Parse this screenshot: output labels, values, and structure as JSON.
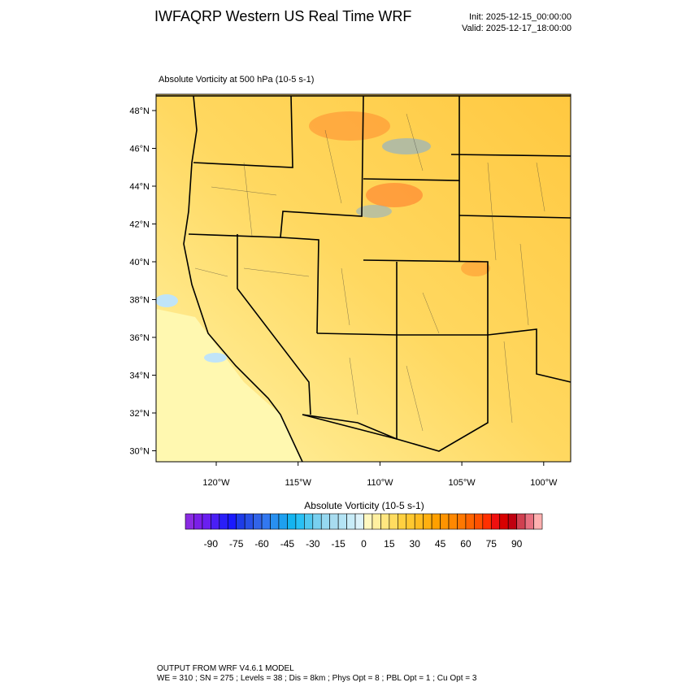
{
  "title": "IWFAQRP Western US Real Time WRF",
  "init": "Init: 2025-12-15_00:00:00",
  "valid": "Valid: 2025-12-17_18:00:00",
  "map": {
    "subtitle": "Absolute Vorticity at 500 hPa   (10-5 s-1)",
    "lat_ticks": [
      "48°N",
      "46°N",
      "44°N",
      "42°N",
      "40°N",
      "38°N",
      "36°N",
      "34°N",
      "32°N",
      "30°N"
    ],
    "lon_ticks": [
      "120°W",
      "115°W",
      "110°W",
      "105°W",
      "100°W"
    ]
  },
  "colorbar": {
    "title": "Absolute Vorticity  (10-5 s-1)",
    "labels": [
      "-90",
      "-75",
      "-60",
      "-45",
      "-30",
      "-15",
      "0",
      "15",
      "30",
      "45",
      "60",
      "75",
      "90"
    ],
    "colors": [
      "#8a2be2",
      "#7a1fe8",
      "#6a1ff0",
      "#4a1ff5",
      "#2a1ff8",
      "#1a1aff",
      "#1e3ce8",
      "#2850e6",
      "#3264e8",
      "#3278f0",
      "#2890f0",
      "#1ea0f0",
      "#14b4f0",
      "#28c0f5",
      "#50c8f0",
      "#78d0f0",
      "#96d8f0",
      "#a8dcf0",
      "#b4e4f5",
      "#c8ecf8",
      "#dcf2fa",
      "#fff8c0",
      "#fff0a0",
      "#ffe680",
      "#ffdc60",
      "#ffd040",
      "#ffc830",
      "#ffbc20",
      "#ffb010",
      "#ffa000",
      "#ff9400",
      "#ff8800",
      "#ff7800",
      "#ff6400",
      "#ff5000",
      "#ff3000",
      "#f01010",
      "#d80000",
      "#c00010",
      "#d04050",
      "#e87080",
      "#ffb0b0"
    ]
  },
  "footer": {
    "line1": "OUTPUT FROM WRF V4.6.1 MODEL",
    "line2": "WE = 310 ; SN = 275 ; Levels = 38 ; Dis = 8km ; Phys Opt = 8 ; PBL Opt = 1 ; Cu Opt = 3"
  }
}
